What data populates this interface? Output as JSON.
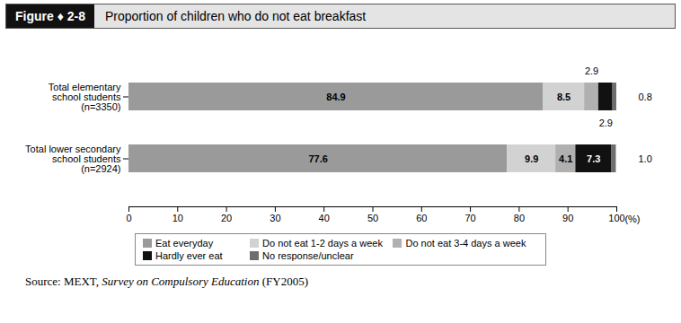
{
  "chart_data": {
    "type": "bar",
    "orientation": "horizontal",
    "stacked": true,
    "data_labels": true,
    "grid": false,
    "legend": "bottom",
    "figure": "Figure ♦ 2-8",
    "title": "Proportion of children who do not eat breakfast",
    "source": [
      "Source: MEXT, ",
      "Survey on Compulsory Education",
      " (FY2005)"
    ],
    "categories": [
      "Total elementary\nschool students\n(n=3350)",
      "Total lower secondary\nschool students\n(n=2924)"
    ],
    "series": [
      {
        "name": "Eat everyday",
        "color": "#9a9a9a",
        "values": [
          84.9,
          77.6
        ]
      },
      {
        "name": "Do not eat 1-2 days a week",
        "color": "#d2d2d2",
        "values": [
          8.5,
          9.9
        ]
      },
      {
        "name": "Do not eat 3-4 days a week",
        "color": "#b0b0b0",
        "values": [
          2.9,
          4.1
        ]
      },
      {
        "name": "Hardly ever eat",
        "color": "#111111",
        "values": [
          2.9,
          7.3
        ]
      },
      {
        "name": "No response/unclear",
        "color": "#6e6e6e",
        "values": [
          0.8,
          1.0
        ],
        "value_labels": [
          "0.8",
          "1.0"
        ]
      }
    ],
    "xlabel": "(%)",
    "xlim": [
      0,
      100
    ],
    "xticks": [
      0,
      10,
      20,
      30,
      40,
      50,
      60,
      70,
      80,
      90,
      100
    ]
  }
}
